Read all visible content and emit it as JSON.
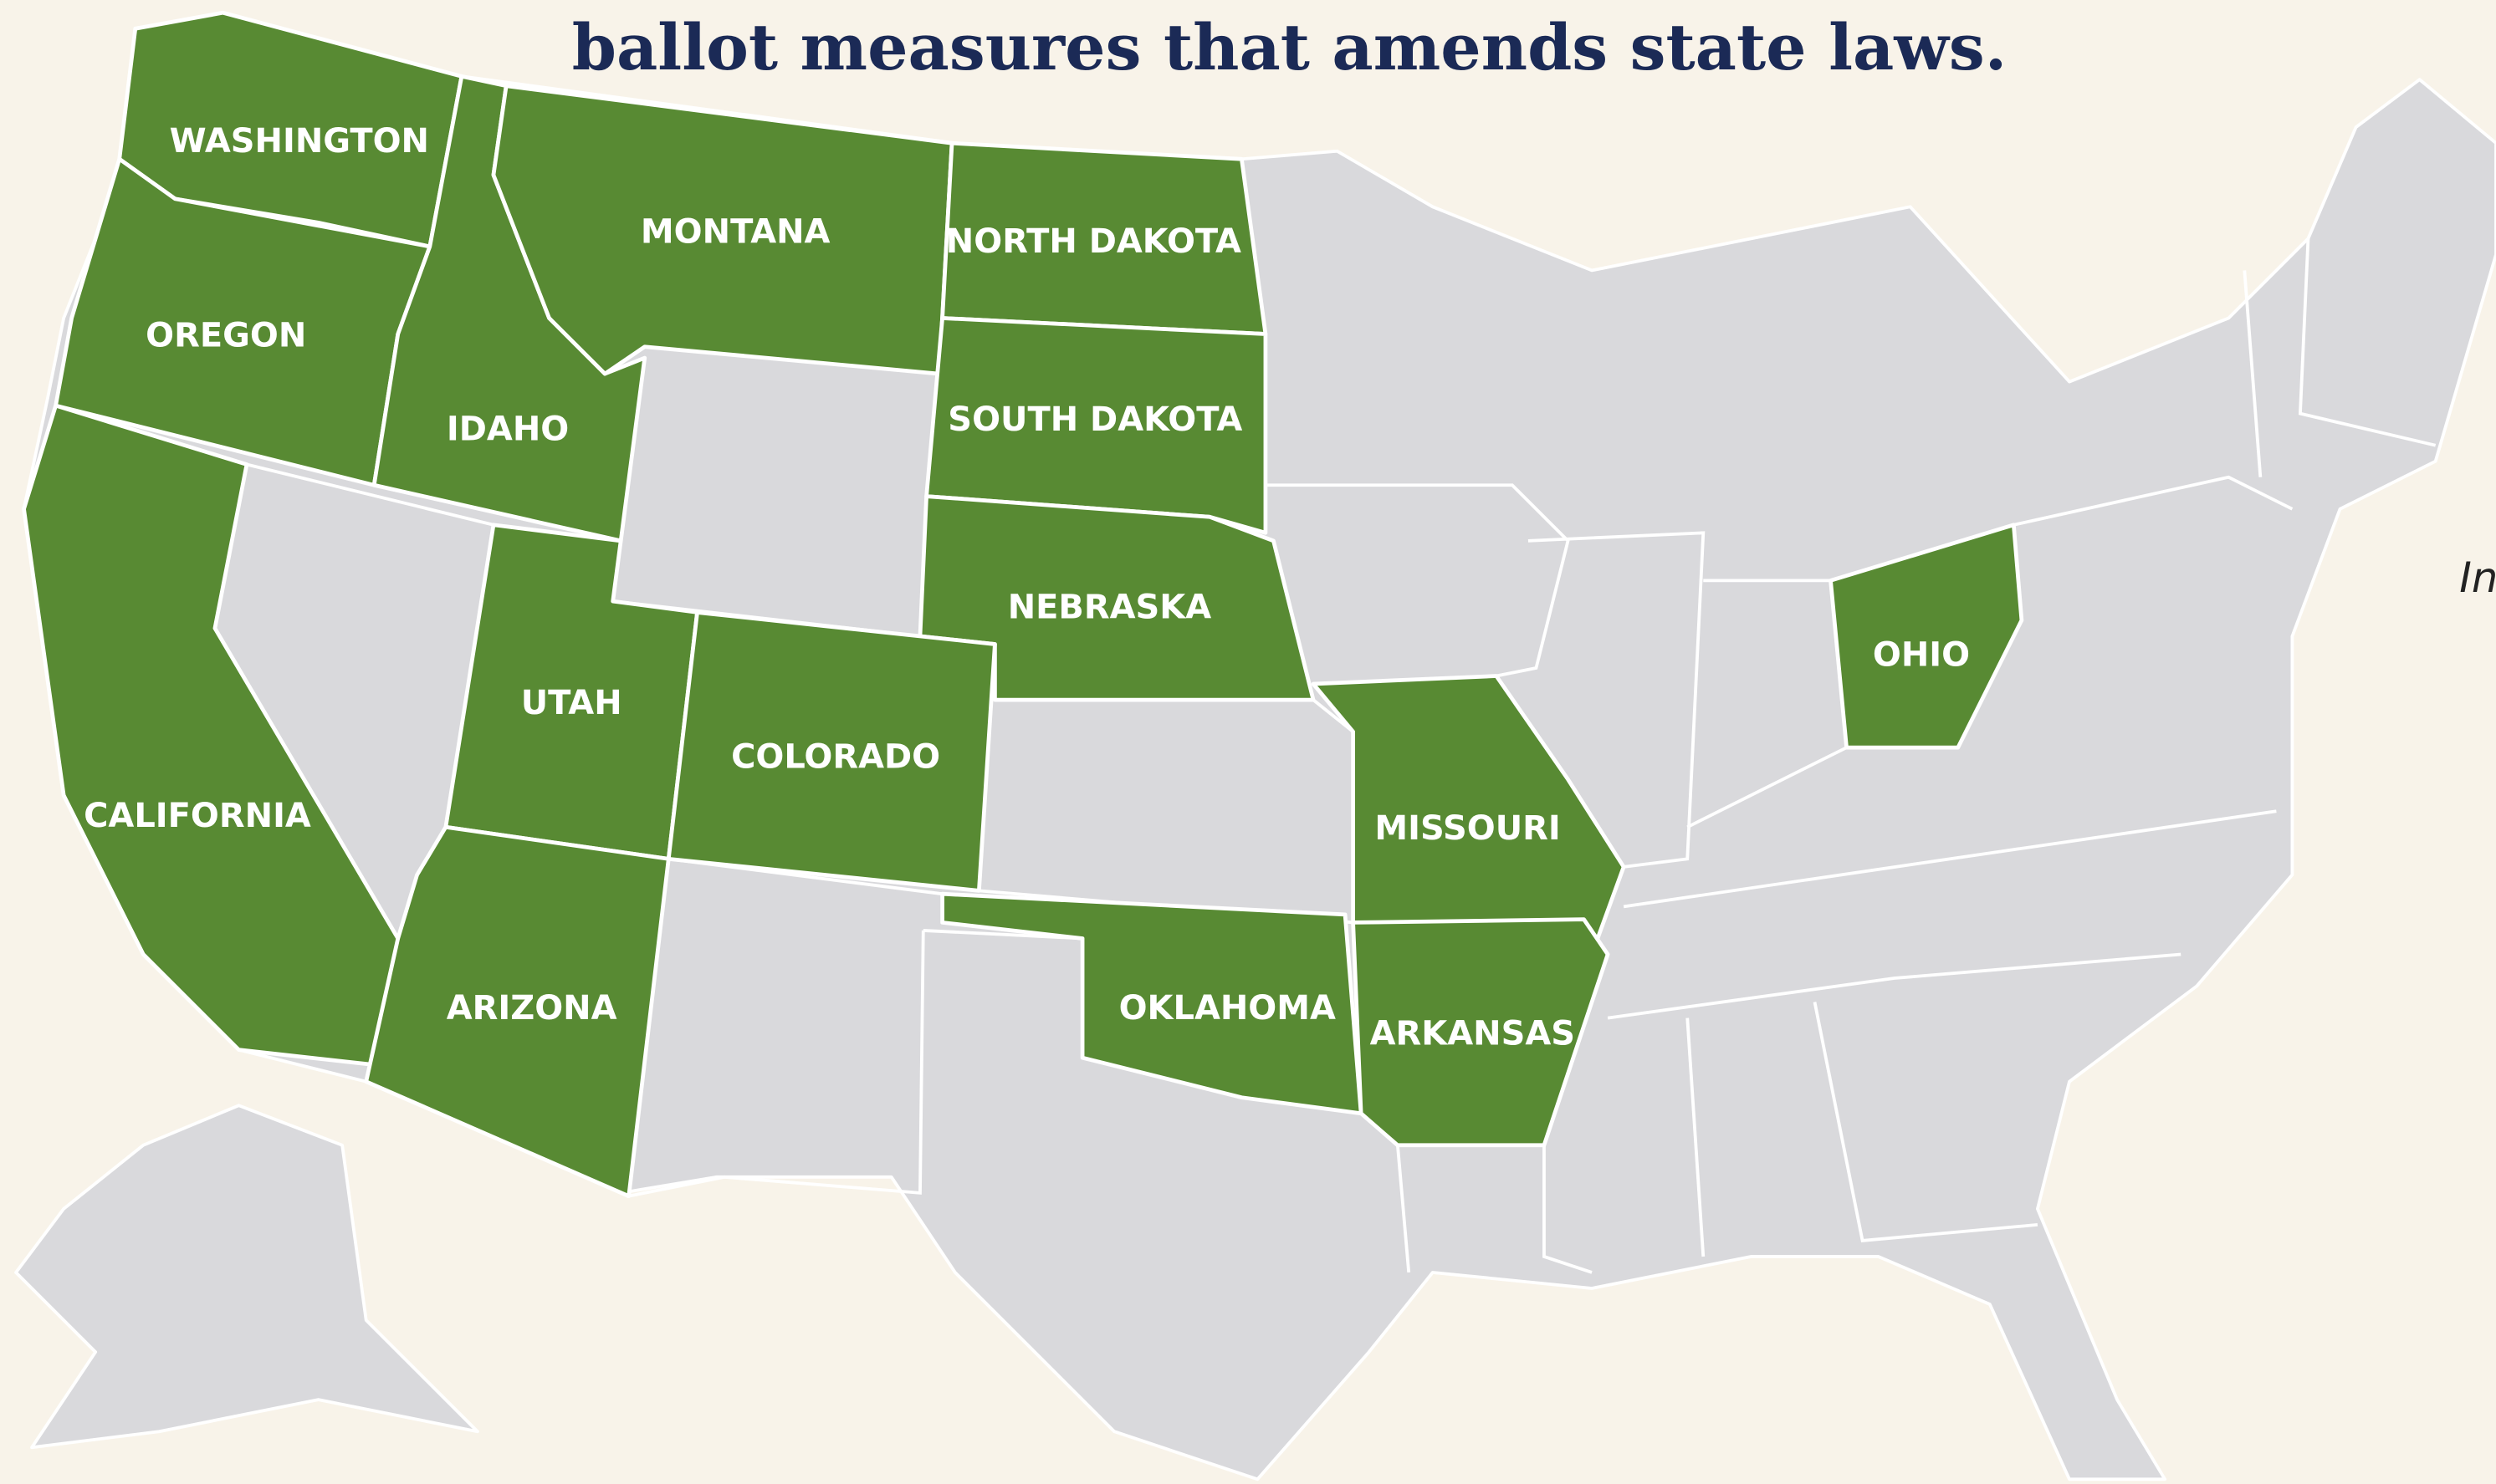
{
  "title": "ballot measures that amends state laws.",
  "states": [
    {
      "label": "WASHINGTON"
    },
    {
      "label": "OREGON"
    },
    {
      "label": "IDAHO"
    },
    {
      "label": "MONTANA"
    },
    {
      "label": "NORTH DAKOTA"
    },
    {
      "label": "SOUTH DAKOTA"
    },
    {
      "label": "NEBRASKA"
    },
    {
      "label": "UTAH"
    },
    {
      "label": "COLORADO"
    },
    {
      "label": "CALIFORNIA"
    },
    {
      "label": "ARIZONA"
    },
    {
      "label": "OKLAHOMA"
    },
    {
      "label": "MISSOURI"
    },
    {
      "label": "ARKANSAS"
    },
    {
      "label": "OHIO"
    }
  ],
  "edge_text": "In"
}
